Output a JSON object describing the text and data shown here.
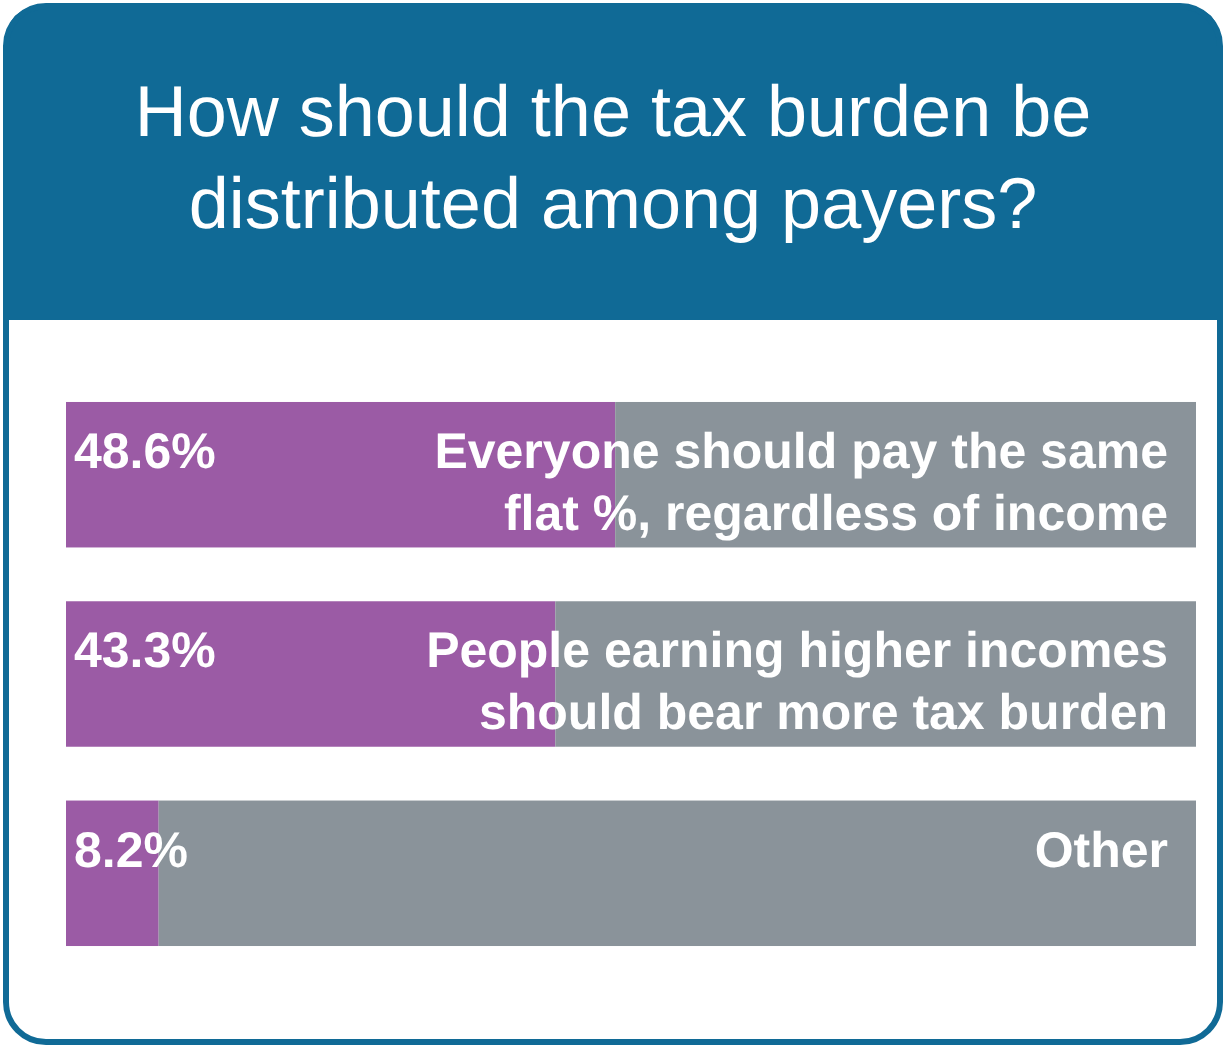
{
  "chart_data": {
    "type": "bar",
    "title": "How should the tax burden be distributed among payers?",
    "orientation": "horizontal",
    "stacked": true,
    "xlim": [
      0,
      100
    ],
    "categories": [
      "Everyone should pay the same flat %, regardless of income",
      "People earning higher incomes should bear more tax burden",
      "Other"
    ],
    "series": [
      {
        "color": "#9b5ba5",
        "values": [
          48.6,
          43.3,
          8.2
        ],
        "value_labels": [
          "48.6%",
          "43.3%",
          "8.2%"
        ]
      },
      {
        "color": "#8a939a",
        "values": [
          51.4,
          56.7,
          91.8
        ]
      }
    ]
  }
}
